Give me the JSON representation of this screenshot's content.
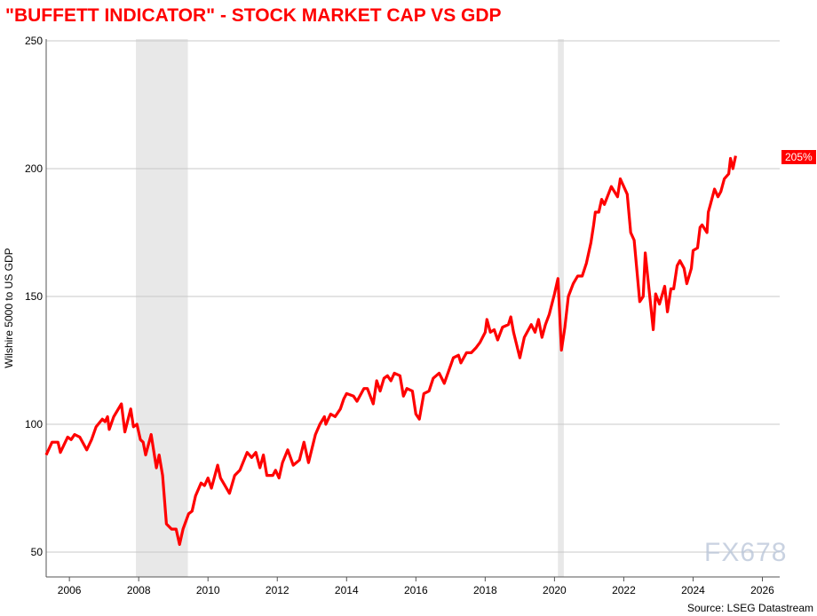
{
  "chart_data": {
    "type": "line",
    "title": "\"BUFFETT INDICATOR\" - STOCK MARKET CAP VS GDP",
    "ylabel": "Wilshire 5000 to US GDP",
    "xlabel": "",
    "source": "Source: LSEG Datastream",
    "last_value_label": "205%",
    "xlim": [
      2005.33,
      2026.5
    ],
    "ylim": [
      45,
      250
    ],
    "x_ticks": [
      2006,
      2008,
      2010,
      2012,
      2014,
      2016,
      2018,
      2020,
      2022,
      2024,
      2026
    ],
    "y_ticks": [
      50,
      100,
      150,
      200,
      250
    ],
    "grid": "horizontal",
    "line_color": "#ff0000",
    "shading_color": "#e8e8e8",
    "recession_shading": [
      [
        2007.92,
        2009.42
      ],
      [
        2020.1,
        2020.27
      ]
    ],
    "series": [
      {
        "x": [
          2005.33,
          2005.5,
          2005.67,
          2005.74,
          2005.95,
          2006.05,
          2006.15,
          2006.3,
          2006.5,
          2006.64,
          2006.77,
          2006.95,
          2007.03,
          2007.1,
          2007.15,
          2007.28,
          2007.5,
          2007.6,
          2007.77,
          2007.85,
          2007.95,
          2008.05,
          2008.13,
          2008.2,
          2008.36,
          2008.51,
          2008.59,
          2008.69,
          2008.8,
          2008.95,
          2009.08,
          2009.18,
          2009.28,
          2009.44,
          2009.54,
          2009.64,
          2009.8,
          2009.9,
          2010.0,
          2010.1,
          2010.28,
          2010.36,
          2010.62,
          2010.77,
          2010.92,
          2011.13,
          2011.26,
          2011.38,
          2011.5,
          2011.6,
          2011.7,
          2011.87,
          2011.95,
          2012.05,
          2012.15,
          2012.3,
          2012.46,
          2012.64,
          2012.77,
          2012.9,
          2013.1,
          2013.23,
          2013.36,
          2013.4,
          2013.54,
          2013.67,
          2013.82,
          2013.92,
          2014.0,
          2014.2,
          2014.3,
          2014.5,
          2014.6,
          2014.77,
          2014.87,
          2014.97,
          2015.08,
          2015.18,
          2015.28,
          2015.38,
          2015.54,
          2015.64,
          2015.74,
          2015.9,
          2016.0,
          2016.1,
          2016.23,
          2016.38,
          2016.5,
          2016.67,
          2016.82,
          2016.95,
          2017.08,
          2017.23,
          2017.3,
          2017.46,
          2017.6,
          2017.74,
          2017.85,
          2018.0,
          2018.05,
          2018.15,
          2018.26,
          2018.36,
          2018.5,
          2018.67,
          2018.74,
          2018.82,
          2019.0,
          2019.13,
          2019.33,
          2019.44,
          2019.54,
          2019.64,
          2019.74,
          2019.85,
          2020.0,
          2020.1,
          2020.2,
          2020.3,
          2020.4,
          2020.54,
          2020.67,
          2020.8,
          2020.92,
          2021.05,
          2021.13,
          2021.18,
          2021.28,
          2021.36,
          2021.44,
          2021.64,
          2021.82,
          2021.9,
          2022.1,
          2022.2,
          2022.3,
          2022.46,
          2022.56,
          2022.62,
          2022.85,
          2022.92,
          2023.03,
          2023.18,
          2023.26,
          2023.36,
          2023.44,
          2023.54,
          2023.62,
          2023.74,
          2023.82,
          2023.95,
          2024.0,
          2024.13,
          2024.2,
          2024.26,
          2024.4,
          2024.44,
          2024.5,
          2024.62,
          2024.72,
          2024.8,
          2024.9,
          2025.03,
          2025.08,
          2025.15,
          2025.23
        ],
        "y": [
          88,
          93,
          93,
          89,
          95,
          94,
          96,
          95,
          90,
          94,
          99,
          102,
          101,
          103,
          98,
          103,
          108,
          97,
          106,
          99,
          100,
          94,
          93,
          88,
          96,
          83,
          88,
          80,
          61,
          59,
          59,
          53,
          59,
          65,
          66,
          72,
          77,
          76,
          79,
          75,
          84,
          79,
          73,
          80,
          82,
          89,
          87,
          89,
          83,
          88,
          80,
          80,
          82,
          79,
          85,
          90,
          84,
          86,
          93,
          85,
          96,
          100,
          103,
          100,
          104,
          103,
          106,
          110,
          112,
          111,
          109,
          114,
          114,
          108,
          117,
          113,
          118,
          119,
          117,
          120,
          119,
          111,
          114,
          113,
          104,
          102,
          112,
          113,
          118,
          120,
          116,
          121,
          126,
          127,
          124,
          128,
          128,
          130,
          132,
          136,
          141,
          136,
          137,
          133,
          138,
          139,
          142,
          136,
          126,
          134,
          139,
          136,
          141,
          134,
          139,
          143,
          151,
          157,
          129,
          138,
          150,
          155,
          158,
          158,
          163,
          171,
          178,
          183,
          183,
          188,
          186,
          193,
          189,
          196,
          190,
          175,
          172,
          148,
          150,
          167,
          137,
          151,
          147,
          154,
          144,
          153,
          153,
          162,
          164,
          161,
          155,
          161,
          168,
          169,
          177,
          178,
          175,
          183,
          186,
          192,
          189,
          191,
          196,
          198,
          204,
          200,
          205
        ]
      }
    ]
  },
  "watermark": "FX678"
}
